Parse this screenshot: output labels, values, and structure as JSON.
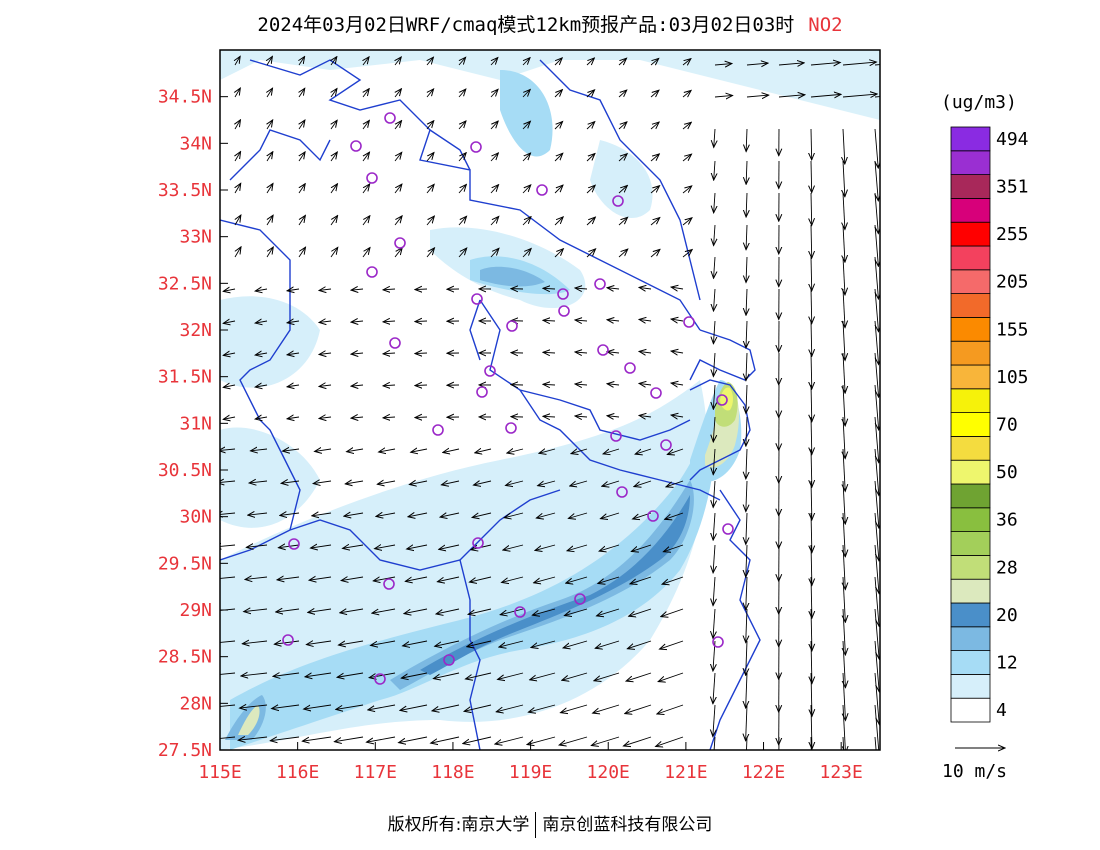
{
  "title": {
    "main": "2024年03月02日WRF/cmaq模式12km预报产品:03月02日03时",
    "pollutant": "NO2"
  },
  "axes": {
    "x_labels": [
      "115E",
      "116E",
      "117E",
      "118E",
      "119E",
      "120E",
      "121E",
      "122E",
      "123E"
    ],
    "y_labels": [
      "27.5N",
      "28N",
      "28.5N",
      "29N",
      "29.5N",
      "30N",
      "30.5N",
      "31N",
      "31.5N",
      "32N",
      "32.5N",
      "33N",
      "33.5N",
      "34N",
      "34.5N"
    ],
    "lon_range": [
      115,
      123.5
    ],
    "lat_range": [
      27.5,
      35.0
    ]
  },
  "colorbar": {
    "unit": "(ug/m3)",
    "labels": [
      "4",
      "12",
      "20",
      "28",
      "36",
      "50",
      "70",
      "105",
      "155",
      "205",
      "255",
      "351",
      "494"
    ],
    "colors": [
      "#ffffff",
      "#d6effa",
      "#a6dcf5",
      "#7cb9e2",
      "#4a8fc9",
      "#dce9be",
      "#c1de78",
      "#a3cf5a",
      "#89bf3f",
      "#6fa332",
      "#eef66d",
      "#f4dc3f",
      "#ffff00",
      "#f6f20a",
      "#f8b53a",
      "#f59a20",
      "#fb8a00",
      "#f26a2a",
      "#f56a6a",
      "#f3415e",
      "#ff0000",
      "#d7007a",
      "#a8285a",
      "#9a2fd2",
      "#8a2be2"
    ]
  },
  "legend": {
    "vector_label": "10 m/s"
  },
  "stations_color": "#9b28c8",
  "boundary_color": "#1f3fcf",
  "footer": {
    "left": "版权所有:南京大学",
    "right": "南京创蓝科技有限公司"
  }
}
